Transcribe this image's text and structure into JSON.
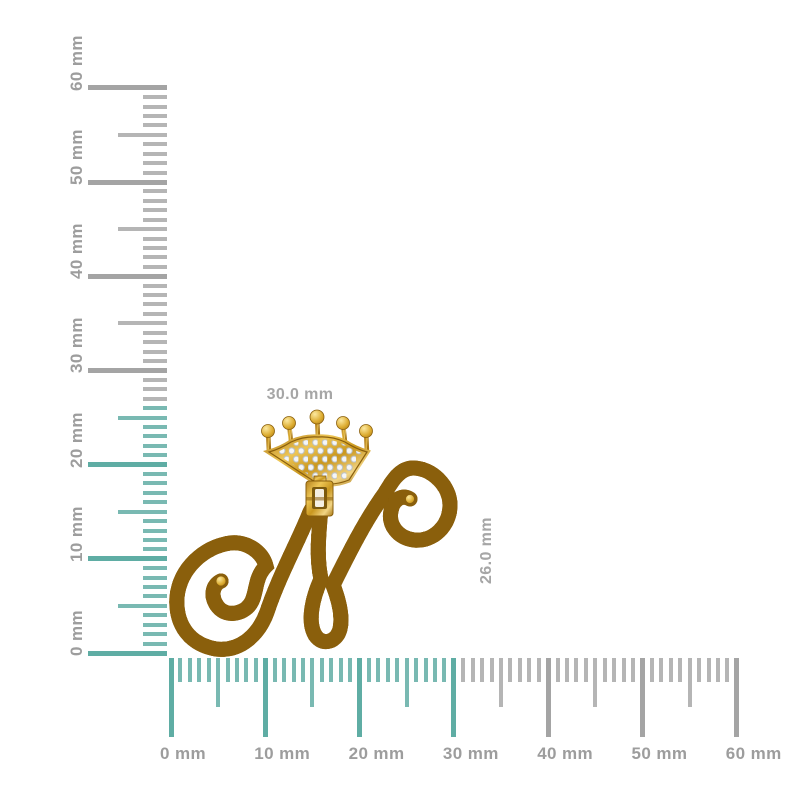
{
  "page": {
    "background": "#ffffff"
  },
  "pendant": {
    "description": "yellow gold crown initial letter N pendant with pave diamonds",
    "width_label": "30.0 mm",
    "height_label": "26.0 mm"
  },
  "rulers": {
    "unit": "mm",
    "max_mm": 60,
    "minor_step_mm": 1,
    "half_step_mm": 5,
    "major_step_mm": 10,
    "vertical": {
      "labels": [
        "0 mm",
        "10 mm",
        "20 mm",
        "30 mm",
        "40 mm",
        "50 mm",
        "60 mm"
      ],
      "highlight_max_mm": 26
    },
    "horizontal": {
      "labels": [
        "0 mm",
        "10 mm",
        "20 mm",
        "30 mm",
        "40 mm",
        "50 mm",
        "60 mm"
      ],
      "highlight_max_mm": 30
    }
  },
  "colors": {
    "teal_minor": "#79b9b2",
    "teal_major": "#5fada4",
    "gray_minor": "#b5b5b5",
    "gray_major": "#a4a4a4",
    "ruler_label": "#9d9d9d",
    "dimension_label": "#a6a6a6",
    "gold": "#d2a035",
    "gold_dark": "#8a5f0c",
    "gold_light": "#f0d078",
    "diamond": "#f4f6f8",
    "diamond_edge": "#b9c0c8"
  }
}
